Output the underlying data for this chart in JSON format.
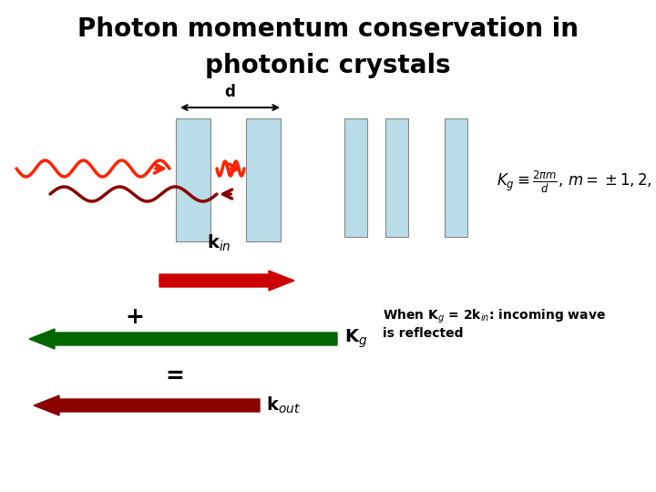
{
  "title_line1": "Photon momentum conservation in",
  "title_line2": "photonic crystals",
  "title_fontsize": 20,
  "bg_color": "#ffffff",
  "crystal_color": "#b8dce8",
  "crystal_edge_color": "#888888",
  "wavy_color_bright": "#ff2200",
  "wavy_color_dark": "#8b0000",
  "kin_arrow_color": "#cc0000",
  "kg_arrow_color": "#006600",
  "kout_arrow_color": "#8b0000",
  "annotation_text": "When K$_g$ = 2k$_{in}$: incoming wave\nis reflected",
  "formula_text": "$K_g \\equiv \\frac{2\\pi m}{d},\\, m = \\pm 1,2,...$"
}
